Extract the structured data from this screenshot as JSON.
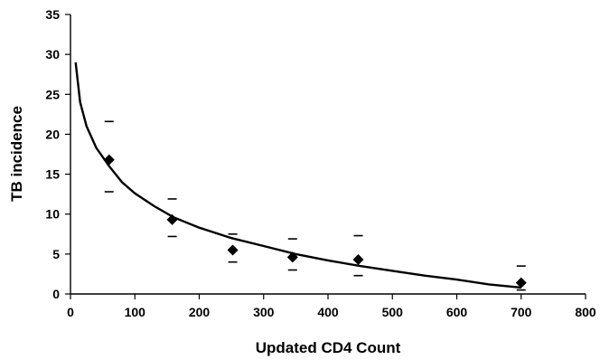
{
  "chart_data": {
    "type": "scatter",
    "xlabel": "Updated CD4 Count",
    "ylabel": "TB incidence",
    "xlim": [
      0,
      800
    ],
    "ylim": [
      0,
      35
    ],
    "x_ticks": [
      0,
      100,
      200,
      300,
      400,
      500,
      600,
      700,
      800
    ],
    "y_ticks": [
      0,
      5,
      10,
      15,
      20,
      25,
      30,
      35
    ],
    "grid": false,
    "legend": "none",
    "series": [
      {
        "points": [
          {
            "x": 60,
            "y": 16.8,
            "upper": 21.6,
            "lower": 12.8
          },
          {
            "x": 158,
            "y": 9.3,
            "upper": 11.9,
            "lower": 7.2
          },
          {
            "x": 252,
            "y": 5.5,
            "upper": 7.5,
            "lower": 4.0
          },
          {
            "x": 345,
            "y": 4.6,
            "upper": 6.9,
            "lower": 3.0
          },
          {
            "x": 447,
            "y": 4.3,
            "upper": 7.3,
            "lower": 2.3
          },
          {
            "x": 700,
            "y": 1.4,
            "upper": 3.5,
            "lower": 0.5
          }
        ]
      }
    ],
    "trendline": {
      "type": "logarithmic",
      "points": [
        {
          "x": 8,
          "y": 29.0
        },
        {
          "x": 15,
          "y": 24.0
        },
        {
          "x": 25,
          "y": 21.0
        },
        {
          "x": 40,
          "y": 18.3
        },
        {
          "x": 60,
          "y": 16.0
        },
        {
          "x": 80,
          "y": 14.0
        },
        {
          "x": 100,
          "y": 12.6
        },
        {
          "x": 130,
          "y": 11.0
        },
        {
          "x": 160,
          "y": 9.6
        },
        {
          "x": 200,
          "y": 8.3
        },
        {
          "x": 250,
          "y": 7.0
        },
        {
          "x": 300,
          "y": 6.0
        },
        {
          "x": 350,
          "y": 5.0
        },
        {
          "x": 400,
          "y": 4.2
        },
        {
          "x": 450,
          "y": 3.5
        },
        {
          "x": 500,
          "y": 2.9
        },
        {
          "x": 550,
          "y": 2.3
        },
        {
          "x": 600,
          "y": 1.8
        },
        {
          "x": 650,
          "y": 1.2
        },
        {
          "x": 700,
          "y": 0.8
        }
      ]
    }
  }
}
